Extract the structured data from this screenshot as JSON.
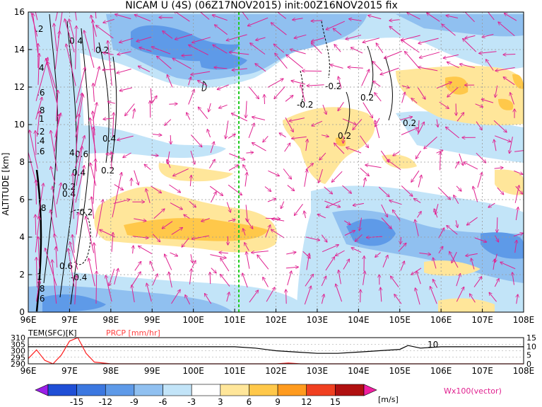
{
  "chart_data": [
    {
      "type": "heatmap",
      "title": "NICAM U (4S) (06Z17NOV2015) init:00Z16NOV2015 fix",
      "ylabel": "ALTITUDE [km]",
      "xlim": [
        96,
        108
      ],
      "ylim": [
        0,
        16
      ],
      "x_ticks": [
        "96E",
        "97E",
        "98E",
        "99E",
        "100E",
        "101E",
        "102E",
        "103E",
        "104E",
        "105E",
        "106E",
        "107E",
        "108E"
      ],
      "y_ticks": [
        "0",
        "2",
        "4",
        "6",
        "8",
        "10",
        "12",
        "14",
        "16"
      ],
      "marker_line_lon": 101,
      "contour_labels": [
        "-0.2",
        "0.2",
        "0.4",
        "0.6"
      ],
      "vector_label": "Wx100(vector)",
      "grid": true
    },
    {
      "type": "line",
      "series": [
        {
          "name": "TEM(SFC)[K]",
          "axis": "left",
          "x": [
            96,
            96.5,
            97,
            97.5,
            98,
            99,
            100,
            101,
            101.5,
            102,
            102.5,
            103,
            103.5,
            104,
            104.5,
            105,
            105.2,
            105.5,
            106,
            106.5,
            107,
            108
          ],
          "values": [
            303,
            303,
            303,
            303,
            303,
            303,
            303,
            303,
            302,
            300,
            299,
            298,
            298,
            299,
            300,
            301,
            304,
            302,
            303,
            303,
            303,
            303
          ]
        },
        {
          "name": "PRCP [mm/hr]",
          "axis": "right",
          "x": [
            96,
            96.2,
            96.4,
            96.6,
            96.8,
            97,
            97.2,
            97.4,
            97.6,
            98,
            100,
            102,
            102.3,
            102.6,
            103,
            108
          ],
          "values": [
            3,
            8,
            2,
            0,
            5,
            13,
            15,
            6,
            1,
            0,
            0,
            0,
            0.5,
            0,
            0,
            0
          ]
        }
      ],
      "left_ticks": [
        "290",
        "295",
        "300",
        "305",
        "310"
      ],
      "right_ticks": [
        "0",
        "5",
        "10",
        "15"
      ],
      "annotation": "10",
      "x_ticks": [
        "96E",
        "97E",
        "98E",
        "99E",
        "100E",
        "101E",
        "102E",
        "103E",
        "104E",
        "105E",
        "106E",
        "107E",
        "108E"
      ]
    }
  ],
  "colorbar": {
    "labels": [
      "-15",
      "-12",
      "-9",
      "-6",
      "-3",
      "3",
      "6",
      "9",
      "12",
      "15"
    ],
    "colors": [
      "#9b1fe8",
      "#1f4fd6",
      "#3c78e0",
      "#5e9ae8",
      "#90c0f0",
      "#c2e4f8",
      "#ffffff",
      "#ffe69a",
      "#ffc84a",
      "#ff9b1e",
      "#f04020",
      "#b01010",
      "#f020a0"
    ],
    "unit": "[m/s]"
  },
  "colors": {
    "vector": "#e0208f",
    "marker_line": "#22cc22",
    "prcp": "#ff2020",
    "prcp_label": "#ff4040"
  }
}
